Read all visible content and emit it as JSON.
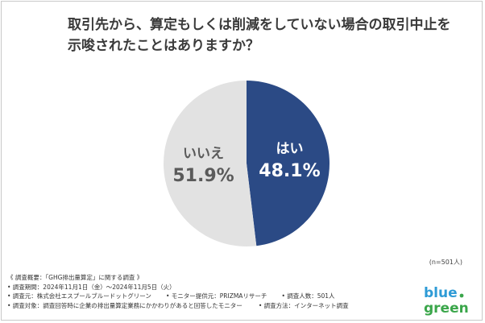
{
  "title_lines": [
    "取引先から、算定もしくは削減をしていない場合の取引中止を",
    "示唆されたことはありますか？"
  ],
  "chart_data": {
    "type": "pie",
    "title": "取引先から、算定もしくは削減をしていない場合の取引中止を示唆されたことはありますか？",
    "slices": [
      {
        "label": "はい",
        "value": 48.1,
        "display": "48.1%",
        "color": "#2b4a85"
      },
      {
        "label": "いいえ",
        "value": 51.9,
        "display": "51.9%",
        "color": "#e2e2e2"
      }
    ],
    "sample_size": "(n=501人)"
  },
  "survey": {
    "heading": "《 調査概要：「GHG排出量算定」に関する調査 》",
    "period": "• 調査期間：2024年11月1日（金）〜2024年11月5日（火）",
    "organizer": "• 調査元：株式会社エスプールブルードットグリーン",
    "monitor_provider": "• モニター提供元：PRIZMAリサーチ",
    "respondents": "• 調査人数：501人",
    "target": "• 調査対象：調査回答時に企業の排出量算定業務にかかわりがあると回答したモニター",
    "method": "• 調査方法：インターネット調査"
  },
  "logo": {
    "line1": "blue",
    "line2": "green",
    "color_blue": "#2e9bd6",
    "color_green": "#3aa64a"
  },
  "colors": {
    "title_text": "#3a3a3a",
    "yes_label": "#ffffff",
    "no_label": "#5a5a5a"
  }
}
